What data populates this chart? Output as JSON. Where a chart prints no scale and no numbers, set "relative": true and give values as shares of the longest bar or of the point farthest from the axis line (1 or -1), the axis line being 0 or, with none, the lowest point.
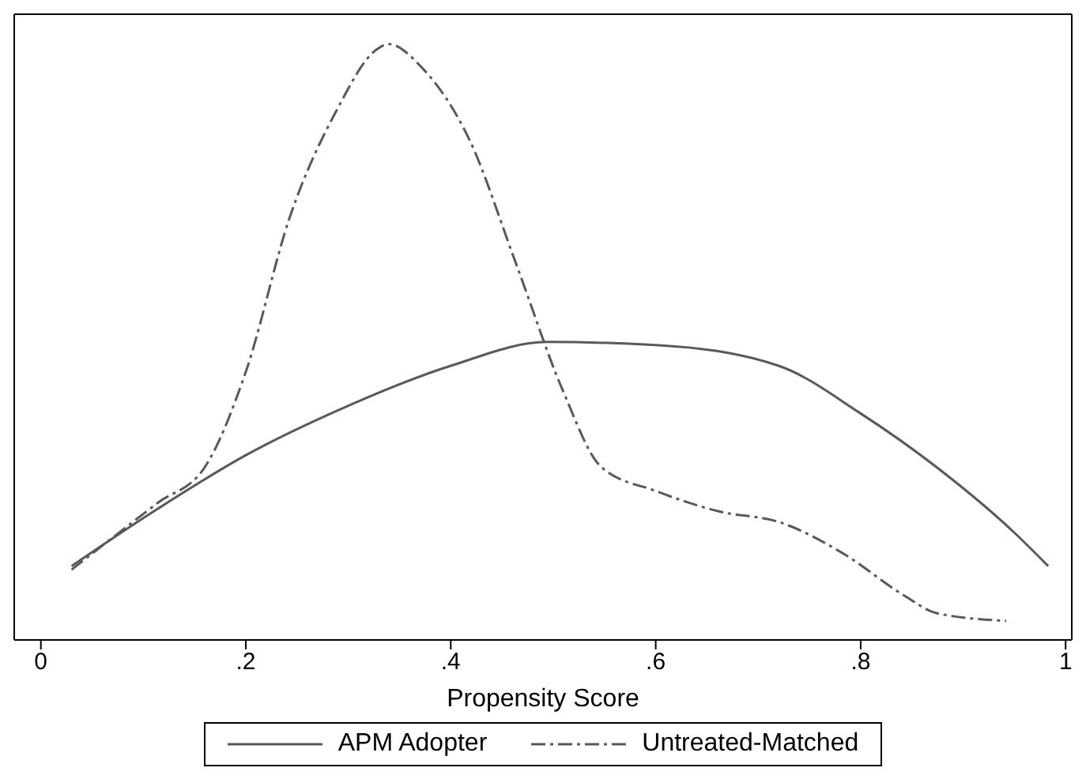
{
  "chart_data": {
    "type": "line",
    "relative": true,
    "xlabel": "Propensity Score",
    "xlim": [
      -0.026,
      1.006
    ],
    "xticks": [
      {
        "value": 0,
        "label": "0"
      },
      {
        "value": 0.2,
        "label": ".2"
      },
      {
        "value": 0.4,
        "label": ".4"
      },
      {
        "value": 0.6,
        "label": ".6"
      },
      {
        "value": 0.8,
        "label": ".8"
      },
      {
        "value": 1,
        "label": "1"
      }
    ],
    "legend": "bottom",
    "marker": "none",
    "series": [
      {
        "name": "APM Adopter",
        "color": "#595959",
        "line_style": "solid",
        "x": [
          0.03,
          0.114,
          0.2,
          0.296,
          0.4,
          0.494,
          0.6,
          0.72,
          0.8,
          0.874,
          0.95,
          0.983
        ],
        "values": [
          0.124,
          0.22,
          0.31,
          0.39,
          0.46,
          0.5,
          0.495,
          0.46,
          0.38,
          0.29,
          0.18,
          0.124
        ]
      },
      {
        "name": "Untreated-Matched",
        "color": "#595959",
        "line_style": "dashdot",
        "x": [
          0.03,
          0.114,
          0.16,
          0.2,
          0.243,
          0.289,
          0.327,
          0.339,
          0.372,
          0.418,
          0.464,
          0.509,
          0.547,
          0.6,
          0.661,
          0.722,
          0.783,
          0.843,
          0.874,
          0.942
        ],
        "values": [
          0.118,
          0.23,
          0.29,
          0.45,
          0.71,
          0.89,
          0.99,
          1,
          0.96,
          0.84,
          0.63,
          0.42,
          0.29,
          0.25,
          0.216,
          0.197,
          0.145,
          0.074,
          0.045,
          0.032
        ]
      }
    ]
  }
}
